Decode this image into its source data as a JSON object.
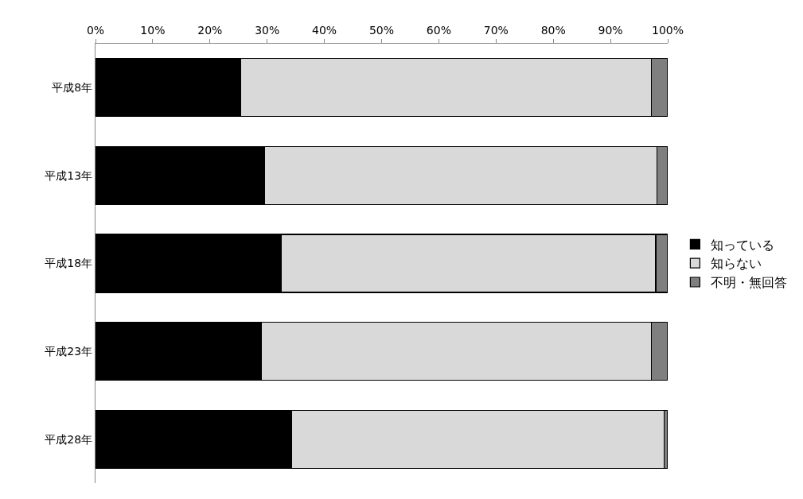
{
  "chart_data": {
    "type": "bar",
    "orientation": "horizontal",
    "stacked": true,
    "categories": [
      "平成8年",
      "平成13年",
      "平成18年",
      "平成23年",
      "平成28年"
    ],
    "series": [
      {
        "name": "知っている",
        "color": "#000000",
        "values": [
          25.4,
          29.6,
          32.4,
          29.0,
          34.2
        ]
      },
      {
        "name": "知らない",
        "color": "#d9d9d9",
        "values": [
          71.8,
          68.5,
          65.5,
          68.2,
          65.2
        ]
      },
      {
        "name": "不明・無回答",
        "color": "#7f7f7f",
        "values": [
          2.8,
          1.9,
          2.1,
          2.8,
          0.6
        ]
      }
    ],
    "xlim": [
      0,
      100
    ],
    "xticks": [
      {
        "value": 0,
        "label": "0%"
      },
      {
        "value": 10,
        "label": "10%"
      },
      {
        "value": 20,
        "label": "20%"
      },
      {
        "value": 30,
        "label": "30%"
      },
      {
        "value": 40,
        "label": "40%"
      },
      {
        "value": 50,
        "label": "50%"
      },
      {
        "value": 60,
        "label": "60%"
      },
      {
        "value": 70,
        "label": "70%"
      },
      {
        "value": 80,
        "label": "80%"
      },
      {
        "value": 90,
        "label": "90%"
      },
      {
        "value": 100,
        "label": "100%"
      }
    ],
    "legend": "right"
  }
}
